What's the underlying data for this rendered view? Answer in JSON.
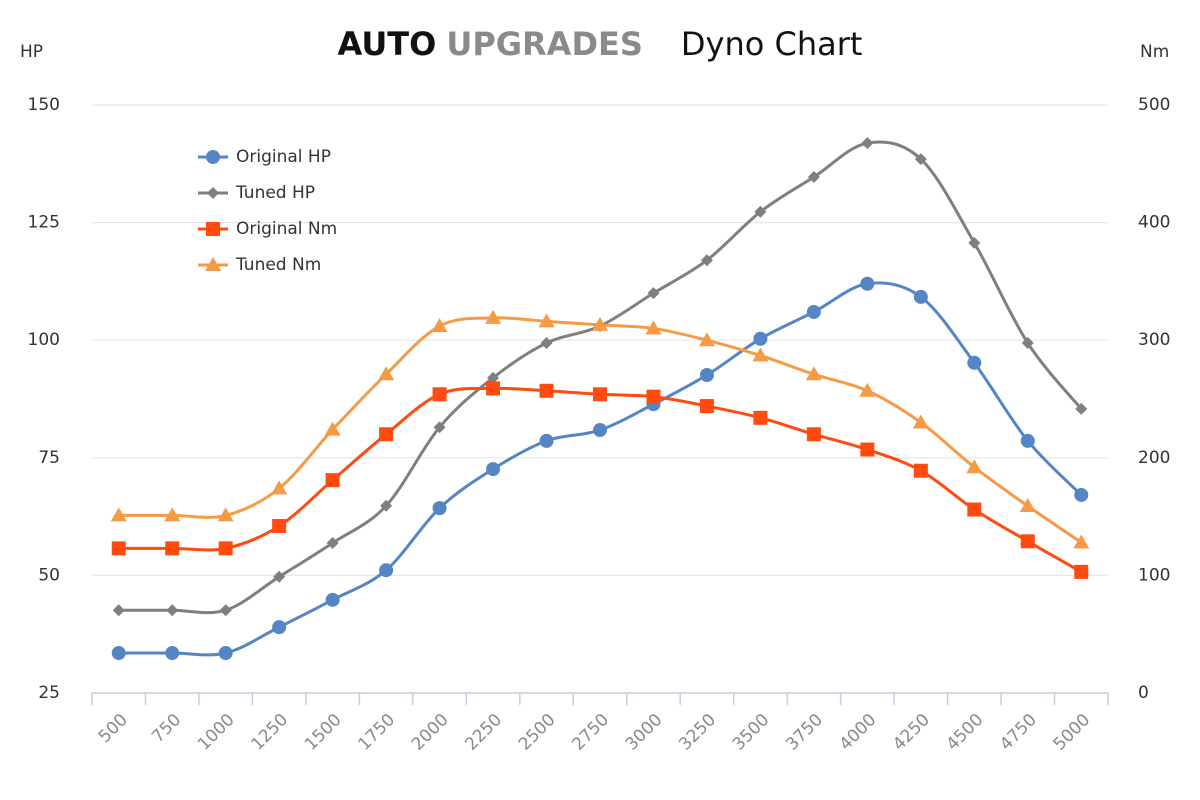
{
  "chart_data": {
    "type": "line",
    "title_brand": "AUTO",
    "title_brand_accent": "UPGRADES",
    "title": "Dyno Chart",
    "y_label": "HP",
    "y2_label": "Nm",
    "categories": [
      "500",
      "750",
      "1000",
      "1250",
      "1500",
      "1750",
      "2000",
      "2250",
      "2500",
      "2750",
      "3000",
      "3250",
      "3500",
      "3750",
      "4000",
      "4250",
      "4500",
      "4750",
      "5000"
    ],
    "ylim": [
      25,
      150
    ],
    "yticks": [
      25,
      50,
      75,
      100,
      125,
      150
    ],
    "y2lim": [
      0,
      500
    ],
    "y2ticks": [
      0,
      100,
      200,
      300,
      400,
      500
    ],
    "grid": true,
    "legend": "upper-left",
    "series": [
      {
        "name": "Original HP",
        "color": "#5485c4",
        "marker": "circle",
        "values": [
          33.5,
          33.5,
          33.5,
          39,
          44.8,
          51.1,
          64.3,
          72.6,
          78.6,
          80.9,
          86.4,
          92.6,
          100.3,
          106,
          112,
          109.2,
          95.2,
          78.6,
          67.1
        ]
      },
      {
        "name": "Tuned HP",
        "color": "#7f7f7f",
        "marker": "diamond",
        "values": [
          42.6,
          42.6,
          42.6,
          49.7,
          56.9,
          64.8,
          81.5,
          92,
          99.4,
          103,
          110,
          117,
          127.3,
          134.7,
          141.9,
          138.5,
          120.7,
          99.4,
          85.4
        ]
      },
      {
        "name": "Original Nm",
        "color": "#ff4b0f",
        "marker": "square",
        "axis": "y2",
        "values": [
          123,
          123,
          123,
          142,
          181,
          220,
          254,
          259,
          257,
          254,
          252,
          244,
          234,
          220,
          207,
          189,
          156,
          129,
          103
        ]
      },
      {
        "name": "Tuned Nm",
        "color": "#f79a46",
        "marker": "triangle",
        "axis": "y2",
        "values": [
          151,
          151,
          151,
          174,
          224,
          271,
          312,
          319,
          316,
          313,
          310,
          300,
          287,
          271,
          257,
          230,
          192,
          159,
          128
        ]
      }
    ]
  }
}
